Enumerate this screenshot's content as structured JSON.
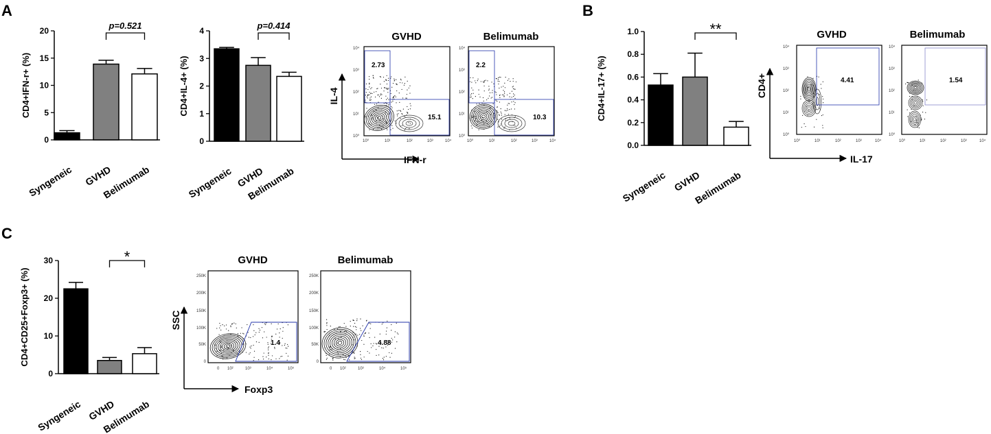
{
  "panels": {
    "A": "A",
    "B": "B",
    "C": "C"
  },
  "chart_data": [
    {
      "id": "ifn",
      "type": "bar",
      "categories": [
        "Syngeneic",
        "GVHD",
        "Belimumab"
      ],
      "values": [
        1.3,
        13.9,
        12.1
      ],
      "errors": [
        0.4,
        0.7,
        1.0
      ],
      "fills": [
        "#000000",
        "#808080",
        "#ffffff"
      ],
      "ylabel": "CD4+IFN-r+ (%)",
      "ylim": [
        0,
        20
      ],
      "ticks": [
        "0",
        "5",
        "10",
        "15",
        "20"
      ],
      "annotation": {
        "text": "p=0.521",
        "from": 1,
        "to": 2
      }
    },
    {
      "id": "il4",
      "type": "bar",
      "categories": [
        "Syngeneic",
        "GVHD",
        "Belimumab"
      ],
      "values": [
        3.35,
        2.75,
        2.35
      ],
      "errors": [
        0.05,
        0.28,
        0.15
      ],
      "fills": [
        "#000000",
        "#808080",
        "#ffffff"
      ],
      "ylabel": "CD4+IL-4+ (%)",
      "ylim": [
        0,
        4
      ],
      "ticks": [
        "0",
        "1",
        "2",
        "3",
        "4"
      ],
      "annotation": {
        "text": "p=0.414",
        "from": 1,
        "to": 2
      }
    },
    {
      "id": "il17",
      "type": "bar",
      "categories": [
        "Syngeneic",
        "GVHD",
        "Belimumab"
      ],
      "values": [
        0.53,
        0.6,
        0.16
      ],
      "errors": [
        0.1,
        0.21,
        0.05
      ],
      "fills": [
        "#000000",
        "#808080",
        "#ffffff"
      ],
      "ylabel": "CD4+IL-17+ (%)",
      "ylim": [
        0,
        1.0
      ],
      "ticks": [
        "0.0",
        "0.2",
        "0.4",
        "0.6",
        "0.8",
        "1.0"
      ],
      "annotation": {
        "text": "**",
        "from": 1,
        "to": 2
      }
    },
    {
      "id": "treg",
      "type": "bar",
      "categories": [
        "Syngeneic",
        "GVHD",
        "Belimumab"
      ],
      "values": [
        22.5,
        3.5,
        5.3
      ],
      "errors": [
        1.7,
        0.8,
        1.6
      ],
      "fills": [
        "#000000",
        "#808080",
        "#ffffff"
      ],
      "ylabel": "CD4+CD25+Foxp3+ (%)",
      "ylim": [
        0,
        30
      ],
      "ticks": [
        "0",
        "10",
        "20",
        "30"
      ],
      "annotation": {
        "text": "*",
        "from": 1,
        "to": 2
      }
    }
  ],
  "flow": {
    "A": {
      "titles": [
        "GVHD",
        "Belimumab"
      ],
      "yaxis": "IL-4",
      "xaxis": "IFN-r",
      "gvhd_values": [
        "2.73",
        "15.1"
      ],
      "bel_values": [
        "2.2",
        "10.3"
      ],
      "ticks": [
        "10⁰",
        "10¹",
        "10²",
        "10³",
        "10⁴"
      ]
    },
    "B": {
      "titles": [
        "GVHD",
        "Belimumab"
      ],
      "yaxis": "CD4+",
      "xaxis": "IL-17",
      "gvhd_value": "4.41",
      "bel_value": "1.54",
      "ticks": [
        "10⁰",
        "10¹",
        "10²",
        "10³",
        "10⁴"
      ]
    },
    "C": {
      "titles": [
        "GVHD",
        "Belimumab"
      ],
      "yaxis": "SSC",
      "xaxis": "Foxp3",
      "gvhd_value": "1.4",
      "bel_value": "4.88",
      "yticks": [
        "0",
        "50K",
        "100K",
        "150K",
        "200K",
        "250K"
      ],
      "xticks": [
        "0",
        "10²",
        "10³",
        "10⁴",
        "10⁵"
      ]
    }
  }
}
